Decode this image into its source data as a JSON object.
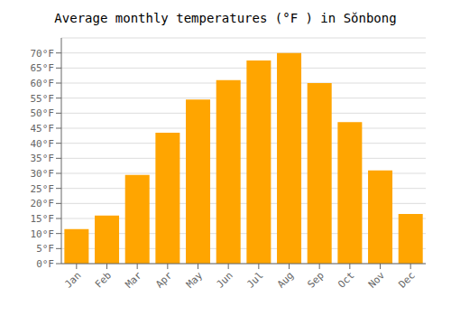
{
  "chart_data": {
    "type": "bar",
    "title": "Average monthly temperatures (°F ) in Sŏnbong",
    "categories": [
      "Jan",
      "Feb",
      "Mar",
      "Apr",
      "May",
      "Jun",
      "Jul",
      "Aug",
      "Sep",
      "Oct",
      "Nov",
      "Dec"
    ],
    "values": [
      11.5,
      16.0,
      29.5,
      43.5,
      54.5,
      61.0,
      67.5,
      70.0,
      60.0,
      47.0,
      31.0,
      16.5
    ],
    "color": "#FFA500",
    "ylim": [
      0,
      75
    ],
    "yticks": [
      {
        "value": 0,
        "label": "0°F"
      },
      {
        "value": 5,
        "label": "5°F"
      },
      {
        "value": 10,
        "label": "10°F"
      },
      {
        "value": 15,
        "label": "15°F"
      },
      {
        "value": 20,
        "label": "20°F"
      },
      {
        "value": 25,
        "label": "25°F"
      },
      {
        "value": 30,
        "label": "30°F"
      },
      {
        "value": 35,
        "label": "35°F"
      },
      {
        "value": 40,
        "label": "40°F"
      },
      {
        "value": 45,
        "label": "45°F"
      },
      {
        "value": 50,
        "label": "50°F"
      },
      {
        "value": 55,
        "label": "55°F"
      },
      {
        "value": 60,
        "label": "60°F"
      },
      {
        "value": 65,
        "label": "65°F"
      },
      {
        "value": 70,
        "label": "70°F"
      }
    ],
    "grid": true
  }
}
